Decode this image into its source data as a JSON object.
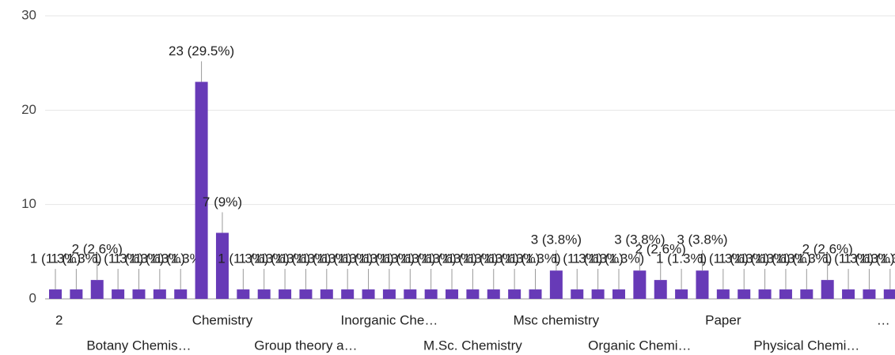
{
  "chart_data": {
    "type": "bar",
    "color": "#673ab7",
    "categories": [
      "2",
      null,
      null,
      null,
      "Botany Chemis…",
      null,
      null,
      null,
      "Chemistry",
      null,
      null,
      null,
      "Group theory a…",
      null,
      null,
      null,
      "Inorganic Che…",
      null,
      null,
      null,
      "M.Sc. Chemistry",
      null,
      null,
      null,
      "Msc chemistry",
      null,
      null,
      null,
      "Organic Chemi…",
      null,
      null,
      null,
      "Paper",
      null,
      null,
      null,
      "Physical Chemi…",
      null,
      null,
      null,
      "…"
    ],
    "values": [
      1,
      1,
      2,
      1,
      1,
      1,
      1,
      23,
      7,
      1,
      1,
      1,
      1,
      1,
      1,
      1,
      1,
      1,
      1,
      1,
      1,
      1,
      1,
      1,
      3,
      1,
      1,
      1,
      3,
      2,
      1,
      3,
      1,
      1,
      1,
      1,
      1,
      2,
      1,
      1,
      1
    ],
    "value_labels": [
      "1 (1.3%)",
      "1 (1.3%)",
      "2 (2.6%)",
      "1 (1.3%)",
      "1 (1.3%)",
      "1 (1.3%)",
      "1 (1.3%)",
      "23 (29.5%)",
      "7 (9%)",
      "1 (1.3%)",
      "1 (1.3%)",
      "1 (1.3%)",
      "1 (1.3%)",
      "1 (1.3%)",
      "1 (1.3%)",
      "1 (1.3%)",
      "1 (1.3%)",
      "1 (1.3%)",
      "1 (1.3%)",
      "1 (1.3%)",
      "1 (1.3%)",
      "1 (1.3%)",
      "1 (1.3%)",
      "1 (1.3%)",
      "3 (3.8%)",
      "1 (1.3%)",
      "1 (1.3%)",
      "1 (1.3%)",
      "3 (3.8%)",
      "2 (2.6%)",
      "1 (1.3%)",
      "3 (3.8%)",
      "1 (1.3%)",
      "1 (1.3%)",
      "1 (1.3%)",
      "1 (1.3%)",
      "1 (1.3%)",
      "2 (2.6%)",
      "1 (1.3%)",
      "1 (1.3%)",
      "1 (1.3%)"
    ],
    "ylim": [
      0,
      30
    ],
    "yticks": [
      0,
      10,
      20,
      30
    ],
    "grid": true
  }
}
